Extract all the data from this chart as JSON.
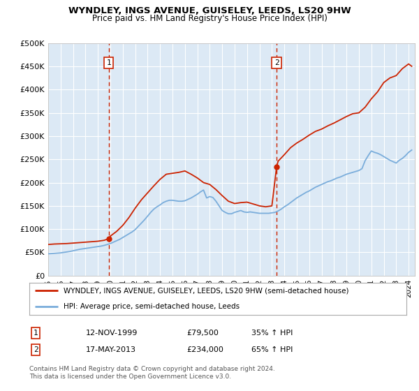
{
  "title": "WYNDLEY, INGS AVENUE, GUISELEY, LEEDS, LS20 9HW",
  "subtitle": "Price paid vs. HM Land Registry's House Price Index (HPI)",
  "bg_color": "#dce9f5",
  "yticks": [
    0,
    50000,
    100000,
    150000,
    200000,
    250000,
    300000,
    350000,
    400000,
    450000,
    500000
  ],
  "ytick_labels": [
    "£0",
    "£50K",
    "£100K",
    "£150K",
    "£200K",
    "£250K",
    "£300K",
    "£350K",
    "£400K",
    "£450K",
    "£500K"
  ],
  "xmin": 1995.0,
  "xmax": 2024.5,
  "ymin": 0,
  "ymax": 500000,
  "sale1_x": 1999.87,
  "sale1_y": 79500,
  "sale1_label": "1",
  "sale2_x": 2013.38,
  "sale2_y": 234000,
  "sale2_label": "2",
  "vline1_x": 1999.87,
  "vline2_x": 2013.38,
  "red_line_color": "#cc2200",
  "blue_line_color": "#7aaddb",
  "vline_color": "#cc2200",
  "legend_label1": "WYNDLEY, INGS AVENUE, GUISELEY, LEEDS, LS20 9HW (semi-detached house)",
  "legend_label2": "HPI: Average price, semi-detached house, Leeds",
  "annotation1_date": "12-NOV-1999",
  "annotation1_price": "£79,500",
  "annotation1_hpi": "35% ↑ HPI",
  "annotation2_date": "17-MAY-2013",
  "annotation2_price": "£234,000",
  "annotation2_hpi": "65% ↑ HPI",
  "footer": "Contains HM Land Registry data © Crown copyright and database right 2024.\nThis data is licensed under the Open Government Licence v3.0.",
  "hpi_years": [
    1995.0,
    1995.25,
    1995.5,
    1995.75,
    1996.0,
    1996.25,
    1996.5,
    1996.75,
    1997.0,
    1997.25,
    1997.5,
    1997.75,
    1998.0,
    1998.25,
    1998.5,
    1998.75,
    1999.0,
    1999.25,
    1999.5,
    1999.75,
    2000.0,
    2000.25,
    2000.5,
    2000.75,
    2001.0,
    2001.25,
    2001.5,
    2001.75,
    2002.0,
    2002.25,
    2002.5,
    2002.75,
    2003.0,
    2003.25,
    2003.5,
    2003.75,
    2004.0,
    2004.25,
    2004.5,
    2004.75,
    2005.0,
    2005.25,
    2005.5,
    2005.75,
    2006.0,
    2006.25,
    2006.5,
    2006.75,
    2007.0,
    2007.25,
    2007.5,
    2007.75,
    2008.0,
    2008.25,
    2008.5,
    2008.75,
    2009.0,
    2009.25,
    2009.5,
    2009.75,
    2010.0,
    2010.25,
    2010.5,
    2010.75,
    2011.0,
    2011.25,
    2011.5,
    2011.75,
    2012.0,
    2012.25,
    2012.5,
    2012.75,
    2013.0,
    2013.25,
    2013.5,
    2013.75,
    2014.0,
    2014.25,
    2014.5,
    2014.75,
    2015.0,
    2015.25,
    2015.5,
    2015.75,
    2016.0,
    2016.25,
    2016.5,
    2016.75,
    2017.0,
    2017.25,
    2017.5,
    2017.75,
    2018.0,
    2018.25,
    2018.5,
    2018.75,
    2019.0,
    2019.25,
    2019.5,
    2019.75,
    2020.0,
    2020.25,
    2020.5,
    2020.75,
    2021.0,
    2021.25,
    2021.5,
    2021.75,
    2022.0,
    2022.25,
    2022.5,
    2022.75,
    2023.0,
    2023.25,
    2023.5,
    2023.75,
    2024.0,
    2024.25
  ],
  "hpi_values": [
    47000,
    47500,
    48000,
    48500,
    49000,
    50000,
    51000,
    52000,
    53500,
    55000,
    56500,
    57500,
    58500,
    59500,
    60500,
    61500,
    62500,
    63500,
    65000,
    67000,
    69000,
    72000,
    75000,
    78000,
    82000,
    86000,
    90000,
    94000,
    99000,
    106000,
    113000,
    120000,
    128000,
    136000,
    143000,
    148000,
    152000,
    157000,
    160000,
    162000,
    162000,
    161000,
    160000,
    160000,
    161000,
    164000,
    167000,
    171000,
    175000,
    180000,
    184000,
    167000,
    170000,
    168000,
    160000,
    150000,
    140000,
    136000,
    133000,
    133000,
    136000,
    138000,
    140000,
    137000,
    136000,
    137000,
    136000,
    135000,
    134000,
    134000,
    134000,
    134000,
    135000,
    136000,
    139000,
    143000,
    148000,
    152000,
    157000,
    162000,
    167000,
    171000,
    175000,
    179000,
    182000,
    186000,
    190000,
    193000,
    196000,
    199000,
    202000,
    204000,
    207000,
    210000,
    212000,
    215000,
    218000,
    220000,
    222000,
    224000,
    226000,
    230000,
    247000,
    258000,
    268000,
    265000,
    263000,
    260000,
    256000,
    252000,
    248000,
    245000,
    242000,
    248000,
    252000,
    258000,
    265000,
    270000
  ],
  "property_years": [
    1995.0,
    1995.5,
    1996.0,
    1996.5,
    1997.0,
    1997.5,
    1998.0,
    1998.5,
    1999.0,
    1999.5,
    1999.87,
    2000.0,
    2000.5,
    2001.0,
    2001.5,
    2002.0,
    2002.5,
    2003.0,
    2003.5,
    2004.0,
    2004.5,
    2005.0,
    2005.5,
    2006.0,
    2006.5,
    2007.0,
    2007.5,
    2008.0,
    2008.5,
    2009.0,
    2009.5,
    2010.0,
    2010.5,
    2011.0,
    2011.5,
    2012.0,
    2012.5,
    2013.0,
    2013.38,
    2013.5,
    2014.0,
    2014.5,
    2015.0,
    2015.5,
    2016.0,
    2016.5,
    2017.0,
    2017.5,
    2018.0,
    2018.5,
    2019.0,
    2019.5,
    2020.0,
    2020.5,
    2021.0,
    2021.5,
    2022.0,
    2022.5,
    2023.0,
    2023.5,
    2024.0,
    2024.25
  ],
  "property_values": [
    67000,
    68000,
    68500,
    69000,
    70000,
    71000,
    72000,
    73000,
    74000,
    76000,
    79500,
    85000,
    95000,
    108000,
    125000,
    145000,
    163000,
    178000,
    193000,
    207000,
    218000,
    220000,
    222000,
    225000,
    218000,
    210000,
    200000,
    196000,
    185000,
    172000,
    160000,
    155000,
    157000,
    158000,
    154000,
    150000,
    148000,
    150000,
    234000,
    246000,
    260000,
    275000,
    285000,
    293000,
    302000,
    310000,
    315000,
    322000,
    328000,
    335000,
    342000,
    348000,
    350000,
    362000,
    380000,
    395000,
    415000,
    425000,
    430000,
    445000,
    455000,
    450000
  ]
}
